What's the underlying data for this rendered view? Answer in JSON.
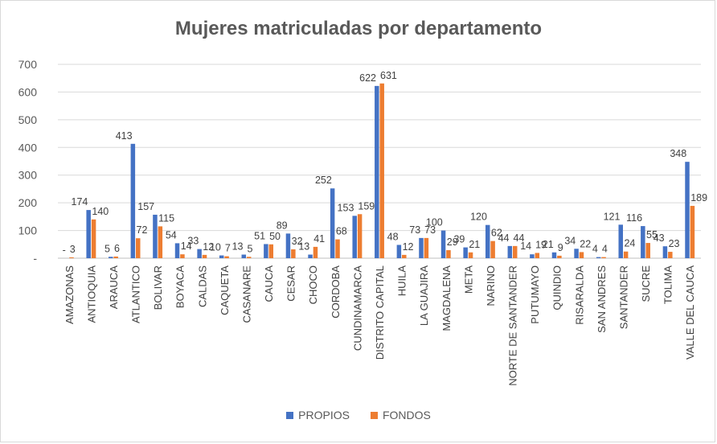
{
  "chart_data": {
    "type": "bar",
    "title": "Mujeres matriculadas por departamento",
    "xlabel": "",
    "ylabel": "",
    "ylim": [
      0,
      700
    ],
    "yticks": [
      0,
      100,
      200,
      300,
      400,
      500,
      600,
      700
    ],
    "ytick_labels": [
      "-",
      "100",
      "200",
      "300",
      "400",
      "500",
      "600",
      "700"
    ],
    "legend_position": "bottom",
    "categories": [
      "AMAZONAS",
      "ANTIOQUIA",
      "ARAUCA",
      "ATLANTICO",
      "BOLIVAR",
      "BOYACA",
      "CALDAS",
      "CAQUETA",
      "CASANARE",
      "CAUCA",
      "CESAR",
      "CHOCO",
      "CORDOBA",
      "CUNDINAMARCA",
      "DISTRITO CAPITAL",
      "HUILA",
      "LA GUAJIRA",
      "MAGDALENA",
      "META",
      "NARINO",
      "NORTE DE SANTANDER",
      "PUTUMAYO",
      "QUINDIO",
      "RISARALDA",
      "SAN ANDRES",
      "SANTANDER",
      "SUCRE",
      "TOLIMA",
      "VALLE DEL CAUCA"
    ],
    "series": [
      {
        "name": "PROPIOS",
        "color": "#4472c4",
        "values": [
          0,
          174,
          5,
          413,
          157,
          54,
          33,
          10,
          13,
          51,
          89,
          13,
          252,
          153,
          622,
          48,
          73,
          100,
          39,
          120,
          44,
          14,
          21,
          34,
          4,
          121,
          116,
          43,
          348
        ],
        "labels": [
          "-",
          "174",
          "5",
          "413",
          "157",
          "54",
          "33",
          "10",
          "13",
          "51",
          "89",
          "13",
          "252",
          "153",
          "622",
          "48",
          "73",
          "100",
          "39",
          "120",
          "44",
          "14",
          "21",
          "34",
          "4",
          "121",
          "116",
          "43",
          "348"
        ]
      },
      {
        "name": "FONDOS",
        "color": "#ed7d31",
        "values": [
          3,
          140,
          6,
          72,
          115,
          14,
          12,
          7,
          5,
          50,
          32,
          41,
          68,
          159,
          631,
          12,
          73,
          29,
          21,
          62,
          44,
          19,
          9,
          22,
          4,
          24,
          55,
          23,
          189
        ],
        "labels": [
          "3",
          "140",
          "6",
          "72",
          "115",
          "14",
          "12",
          "7",
          "5",
          "50",
          "32",
          "41",
          "68",
          "159",
          "631",
          "12",
          "73",
          "29",
          "21",
          "62",
          "44",
          "19",
          "9",
          "22",
          "4",
          "24",
          "55",
          "23",
          "189"
        ]
      }
    ]
  }
}
